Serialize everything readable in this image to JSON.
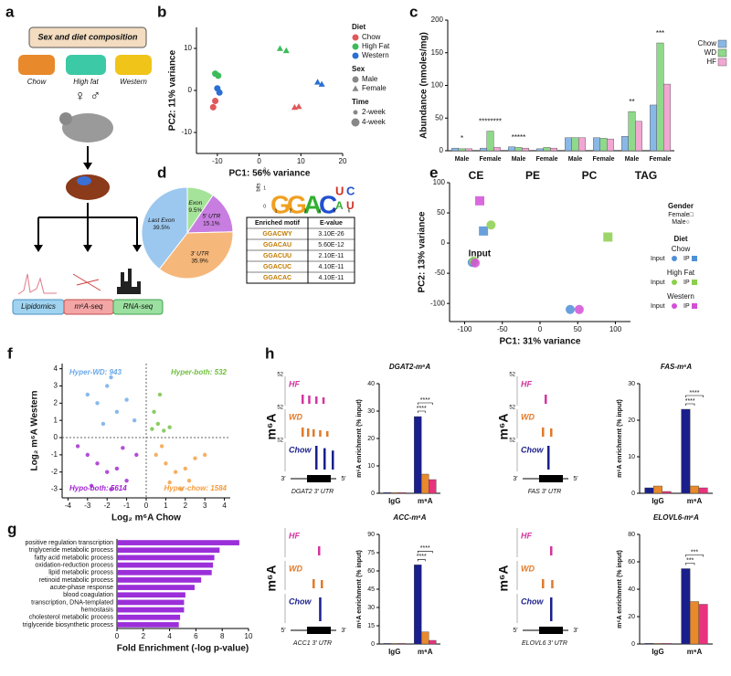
{
  "labels": [
    "a",
    "b",
    "c",
    "d",
    "e",
    "f",
    "g",
    "h"
  ],
  "panel_a": {
    "title": "Sex and diet composition",
    "diets": [
      "Chow",
      "High fat",
      "Western"
    ],
    "sexes": "♀ ♂",
    "assays": [
      "Lipidomics",
      "m⁶A-seq",
      "RNA-seq"
    ]
  },
  "panel_d": {
    "logo": {
      "ylabel": "bits",
      "yticks": [
        0,
        1,
        2
      ],
      "positions": [
        1,
        2,
        3,
        4,
        5,
        6
      ],
      "letters": [
        "G",
        "G",
        "A",
        "C",
        "U",
        "A",
        "C",
        "U"
      ]
    },
    "table": {
      "header": [
        "Enriched motif",
        "E-value"
      ],
      "rows": [
        [
          "GGACWY",
          "3.10E-26"
        ],
        [
          "GGACAU",
          "5.60E-12"
        ],
        [
          "GGACUU",
          "2.10E-11"
        ],
        [
          "GGACUC",
          "4.10E-11"
        ],
        [
          "GGACAC",
          "4.10E-11"
        ]
      ]
    }
  },
  "panel_h": {
    "axis_label": "m⁶A",
    "blocks": [
      {
        "scale": "52",
        "tracks": [
          "HF",
          "WD",
          "Chow"
        ],
        "gene": "DGAT2 3′ UTR",
        "ends": [
          "3′",
          "5′"
        ]
      },
      {
        "scale": "52",
        "tracks": [
          "HF",
          "WD",
          "Chow"
        ],
        "gene": "FAS 3′ UTR",
        "ends": [
          "3′",
          "5′"
        ]
      },
      {
        "tracks": [
          "HF",
          "WD",
          "Chow"
        ],
        "gene": "ACC1 3′ UTR",
        "ends": [
          "5′",
          "3′"
        ]
      },
      {
        "tracks": [
          "HF",
          "WD",
          "Chow"
        ],
        "gene": "ELOVL6 3′ UTR",
        "ends": [
          "5′",
          "3′"
        ]
      }
    ]
  },
  "chart_data": [
    {
      "type": "scatter",
      "xlabel": "PC1: 56% variance",
      "ylabel": "PC2: 11% variance",
      "xlim": [
        -15,
        20
      ],
      "ylim": [
        -15,
        15
      ],
      "xticks": [
        -10,
        0,
        10,
        20
      ],
      "yticks": [
        -10,
        0,
        10
      ],
      "legend_title": "Diet",
      "series": [
        {
          "name": "Chow",
          "color": "#e0585b",
          "x": [
            -11,
            -10.5,
            8.5,
            9.5
          ],
          "values": [
            -4,
            -2.5,
            -4,
            -3.8
          ],
          "shapes": [
            "circle",
            "circle",
            "triangle",
            "triangle"
          ]
        },
        {
          "name": "High Fat",
          "color": "#3dbb5a",
          "x": [
            -10.5,
            -9.8,
            5,
            6.5
          ],
          "values": [
            4,
            3.5,
            10,
            9.5
          ],
          "shapes": [
            "circle",
            "circle",
            "triangle",
            "triangle"
          ]
        },
        {
          "name": "Western",
          "color": "#2a6fd4",
          "x": [
            -10,
            -9.5,
            14,
            15
          ],
          "values": [
            0.5,
            -0.5,
            2,
            1.5
          ],
          "shapes": [
            "circle",
            "circle",
            "triangle",
            "triangle"
          ]
        }
      ],
      "sex_legend": {
        "title": "Sex",
        "names": [
          "Male",
          "Female"
        ]
      },
      "time_legend": {
        "title": "Time",
        "names": [
          "2-week",
          "4-week"
        ]
      }
    },
    {
      "type": "bar",
      "ylabel": "Abundance (nmoles/mg)",
      "ylim": [
        0,
        200
      ],
      "yticks": [
        0,
        50,
        100,
        150,
        200
      ],
      "categories": [
        "Male",
        "Female",
        "Male",
        "Female",
        "Male",
        "Female",
        "Male",
        "Female"
      ],
      "groups": [
        "CE",
        "PE",
        "PC",
        "TAG"
      ],
      "series": [
        {
          "name": "Chow",
          "color": "#8ab8e6",
          "values": [
            4,
            4,
            6,
            3,
            20,
            20,
            22,
            70
          ]
        },
        {
          "name": "WD",
          "color": "#8fd98a",
          "values": [
            3,
            30,
            5,
            5,
            20,
            19,
            60,
            165
          ]
        },
        {
          "name": "HF",
          "color": "#f2a7d3",
          "values": [
            3,
            5,
            4,
            4,
            20,
            18,
            45,
            102
          ]
        }
      ],
      "annotations": [
        {
          "text": "*",
          "category": 0
        },
        {
          "text": "********",
          "category": 1
        },
        {
          "text": "*****",
          "category": 2
        },
        {
          "text": "**",
          "category": 6
        },
        {
          "text": "***",
          "category": 7
        }
      ]
    },
    {
      "type": "pie",
      "categories": [
        "Exon",
        "5′ UTR",
        "3′ UTR",
        "Last Exon"
      ],
      "values": [
        9.5,
        15.1,
        35.9,
        39.5
      ],
      "value_labels": [
        "9.5%",
        "15.1%",
        "35.9%",
        "39.5%"
      ],
      "colors": [
        "#a6e39a",
        "#c77ee0",
        "#f6b77a",
        "#9cc8ef"
      ]
    },
    {
      "type": "scatter",
      "xlabel": "PC1: 31% variance",
      "ylabel": "PC2: 13% variance",
      "xlim": [
        -120,
        120
      ],
      "ylim": [
        -130,
        100
      ],
      "xticks": [
        -100,
        -50,
        0,
        50,
        100
      ],
      "yticks": [
        -100,
        -50,
        0,
        50,
        100
      ],
      "annotation": "Input",
      "legend_title": "Diet",
      "input_label": "Input",
      "ip_label": "IP",
      "gender_legend": {
        "title": "Gender",
        "names": [
          "Female□",
          "Male○"
        ]
      },
      "series": [
        {
          "name": "Chow",
          "color": "#4f8fd6",
          "x": [
            -90,
            -75,
            40
          ],
          "values": [
            -32,
            20,
            -110
          ],
          "shapes": [
            "circle",
            "square",
            "circle"
          ]
        },
        {
          "name": "High Fat",
          "color": "#8ccf4e",
          "x": [
            -88,
            -65,
            90
          ],
          "values": [
            -30,
            30,
            10
          ],
          "shapes": [
            "circle",
            "circle",
            "square"
          ]
        },
        {
          "name": "Western",
          "color": "#d34fd8",
          "x": [
            -86,
            -80,
            52
          ],
          "values": [
            -33,
            70,
            -110
          ],
          "shapes": [
            "circle",
            "square",
            "circle"
          ]
        }
      ]
    },
    {
      "type": "scatter",
      "xlabel": "Log₂ m⁶A Chow",
      "ylabel": "Log₂ m⁶A Western",
      "xlim": [
        -4.3,
        4.3
      ],
      "ylim": [
        -3.5,
        4.3
      ],
      "xticks": [
        -4,
        -3,
        -2,
        -1,
        0,
        1,
        2,
        3,
        4
      ],
      "yticks": [
        -3,
        -2,
        -1,
        0,
        1,
        2,
        3,
        4
      ],
      "series": [
        {
          "name": "Hyper-WD: 943",
          "color": "#6aa8e8",
          "x": [
            -3,
            -2.5,
            -2,
            -1.5,
            -1,
            -0.6,
            -2.2,
            -1.8
          ],
          "values": [
            2.5,
            2,
            3,
            1.5,
            2.2,
            1,
            0.8,
            3.5
          ]
        },
        {
          "name": "Hyper-both: 532",
          "color": "#6fbf3f",
          "x": [
            0.3,
            0.6,
            0.9,
            0.4,
            1.2,
            0.7
          ],
          "values": [
            0.5,
            0.8,
            0.4,
            1.5,
            0.6,
            2.5
          ]
        },
        {
          "name": "Hypo-both: 5614",
          "color": "#a020d0",
          "x": [
            -3.5,
            -3,
            -2.5,
            -2,
            -1.5,
            -1,
            -0.5,
            -2.8,
            -1.8,
            -1.2
          ],
          "values": [
            -0.5,
            -1,
            -1.5,
            -2,
            -1.8,
            -2.5,
            -1,
            -2.8,
            -3,
            -0.6
          ]
        },
        {
          "name": "Hyper-chow: 1584",
          "color": "#f39c3f",
          "x": [
            0.5,
            1,
            1.5,
            2,
            2.5,
            3,
            1.2,
            2.2,
            0.8,
            1.8
          ],
          "values": [
            -1,
            -1.5,
            -2,
            -1.8,
            -1.2,
            -1,
            -2.6,
            -2.5,
            -0.5,
            -3
          ]
        }
      ]
    },
    {
      "type": "hbar",
      "xlabel": "Fold Enrichment (-log p-value)",
      "color": "#9b2fd9",
      "xlim": [
        0,
        10
      ],
      "xticks": [
        0,
        2,
        4,
        6,
        8,
        10
      ],
      "categories": [
        "positive regulation transcription",
        "triglyceride metabolic process",
        "fatty acid metabolic process",
        "oxidation-reduction process",
        "lipid metabolic process",
        "retinoid metabolic process",
        "acute-phase response",
        "blood coagulation",
        "transcription, DNA-templated",
        "hemostasis",
        "cholesterol metabolic process",
        "triglyceride biosynthetic process"
      ],
      "values": [
        9.3,
        7.8,
        7.4,
        7.3,
        7.2,
        6.4,
        5.9,
        5.2,
        5.1,
        5.1,
        4.8,
        4.7
      ]
    },
    {
      "type": "bar",
      "title": "DGAT2-m⁶A",
      "ylabel": "m⁶A enrichment (% input)",
      "ylim": [
        0,
        40
      ],
      "yticks": [
        0,
        10,
        20,
        30,
        40
      ],
      "categories": [
        "IgG",
        "m⁶A"
      ],
      "series": [
        {
          "color": "#1a1f8c",
          "values": [
            0.3,
            28
          ]
        },
        {
          "color": "#e8892b",
          "values": [
            0.3,
            7
          ]
        },
        {
          "color": "#e8337e",
          "values": [
            0.3,
            5
          ]
        }
      ],
      "brackets": [
        {
          "text": "****"
        },
        {
          "text": "****"
        }
      ]
    },
    {
      "type": "bar",
      "title": "FAS-m⁶A",
      "ylabel": "m⁶A enrichment (% input)",
      "ylim": [
        0,
        30
      ],
      "yticks": [
        0,
        10,
        20,
        30
      ],
      "categories": [
        "IgG",
        "m⁶A"
      ],
      "series": [
        {
          "color": "#1a1f8c",
          "values": [
            1.5,
            23
          ]
        },
        {
          "color": "#e8892b",
          "values": [
            2,
            2
          ]
        },
        {
          "color": "#e8337e",
          "values": [
            0.5,
            1.5
          ]
        }
      ],
      "brackets": [
        {
          "text": "****"
        },
        {
          "text": "****"
        }
      ]
    },
    {
      "type": "bar",
      "title": "ACC-m⁶A",
      "ylabel": "m⁶A enrichment (% input)",
      "ylim": [
        0,
        90
      ],
      "yticks": [
        0,
        15,
        30,
        45,
        60,
        75,
        90
      ],
      "categories": [
        "IgG",
        "m⁶A"
      ],
      "series": [
        {
          "color": "#1a1f8c",
          "values": [
            0.5,
            65
          ]
        },
        {
          "color": "#e8892b",
          "values": [
            0.5,
            10
          ]
        },
        {
          "color": "#e8337e",
          "values": [
            0.5,
            3
          ]
        }
      ],
      "brackets": [
        {
          "text": "****"
        },
        {
          "text": "****"
        }
      ]
    },
    {
      "type": "bar",
      "title": "ELOVL6-m⁶A",
      "ylabel": "m⁶A enrichment (% input)",
      "ylim": [
        0,
        80
      ],
      "yticks": [
        0,
        20,
        40,
        60,
        80
      ],
      "categories": [
        "IgG",
        "m⁶A"
      ],
      "series": [
        {
          "color": "#1a1f8c",
          "values": [
            0.5,
            55
          ]
        },
        {
          "color": "#e8892b",
          "values": [
            0.5,
            31
          ]
        },
        {
          "color": "#e8337e",
          "values": [
            0.5,
            29
          ]
        }
      ],
      "brackets": [
        {
          "text": "***"
        },
        {
          "text": "***"
        }
      ]
    }
  ]
}
